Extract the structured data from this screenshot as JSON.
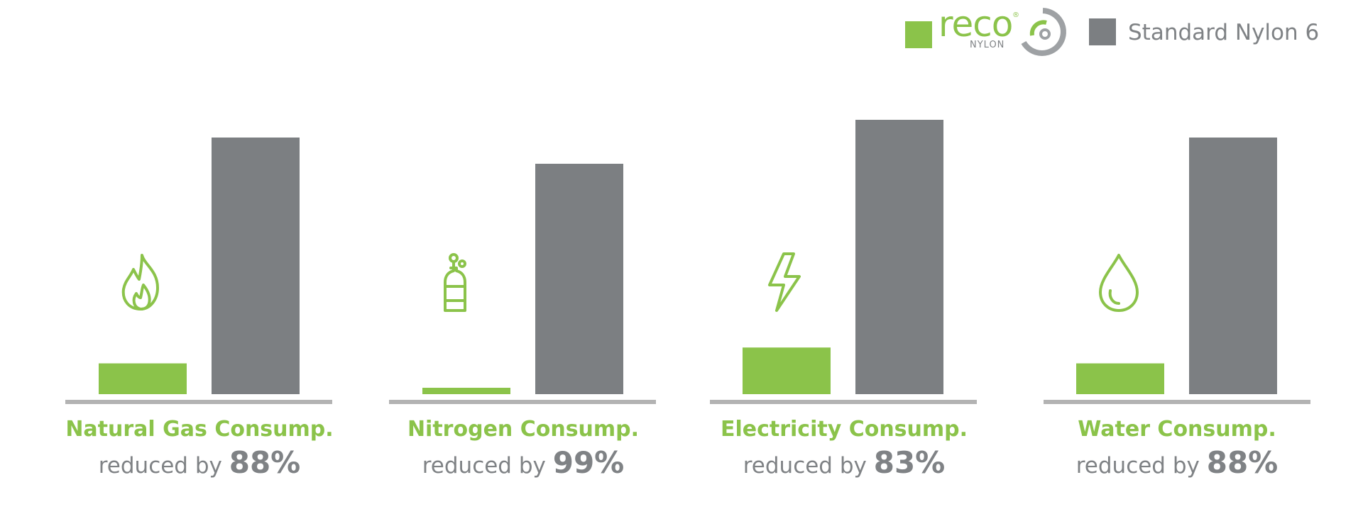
{
  "legend": {
    "reco_brand": "reco",
    "reco_registered": "®",
    "reco_sub": "NYLON",
    "standard_label": "Standard Nylon 6"
  },
  "colors": {
    "reco": "#8bc34a",
    "standard": "#7c7f82",
    "baseline": "#b3b3b3",
    "text_gray": "#7f8285"
  },
  "chart_data": {
    "type": "bar",
    "categories": [
      "Natural Gas Consump.",
      "Nitrogen Consump.",
      "Electricity Consump.",
      "Water Consump."
    ],
    "series": [
      {
        "name": "reco NYLON",
        "values": [
          12,
          1,
          17,
          12
        ]
      },
      {
        "name": "Standard Nylon 6",
        "values": [
          100,
          100,
          100,
          100
        ]
      }
    ],
    "reductions": [
      {
        "prefix": "reduced by ",
        "value": "88%"
      },
      {
        "prefix": "reduced by ",
        "value": "99%"
      },
      {
        "prefix": "reduced by ",
        "value": "83%"
      },
      {
        "prefix": "reduced by ",
        "value": "88%"
      }
    ],
    "icons": [
      "flame-icon",
      "gas-cylinder-icon",
      "lightning-icon",
      "water-drop-icon"
    ],
    "ylim": [
      0,
      100
    ],
    "grid": false,
    "legend_position": "top-right"
  }
}
